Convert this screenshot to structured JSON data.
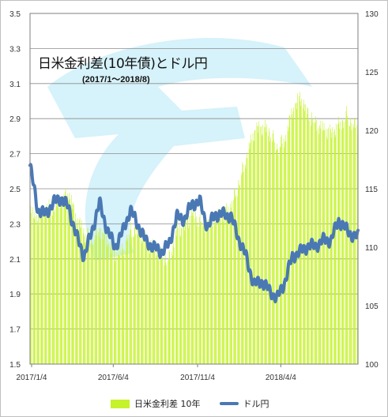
{
  "chart_data": {
    "type": "bar+line",
    "title": "日米金利差(10年債)とドル円",
    "subtitle": "(2017/1～2018/8)",
    "x_ticks": [
      "2017/1/4",
      "2017/6/4",
      "2017/11/4",
      "2018/4/4"
    ],
    "left_axis": {
      "ylim": [
        1.5,
        3.5
      ],
      "ticks": [
        "1.5",
        "1.7",
        "1.9",
        "2.1",
        "2.3",
        "2.5",
        "2.7",
        "2.9",
        "3.1",
        "3.3",
        "3.5"
      ]
    },
    "right_axis": {
      "ylim": [
        100,
        130
      ],
      "ticks": [
        "100",
        "105",
        "110",
        "115",
        "120",
        "125",
        "130"
      ]
    },
    "grid": true,
    "legend_position": "bottom",
    "series": [
      {
        "name": "日米金利差 10年",
        "type": "bar",
        "axis": "left",
        "color": "#c6f22c",
        "x": [
          "2017/1/4",
          "2017/1/18",
          "2017/2/1",
          "2017/2/15",
          "2017/3/1",
          "2017/3/15",
          "2017/3/29",
          "2017/4/12",
          "2017/4/26",
          "2017/5/10",
          "2017/5/24",
          "2017/6/7",
          "2017/6/21",
          "2017/7/5",
          "2017/7/19",
          "2017/8/2",
          "2017/8/16",
          "2017/8/30",
          "2017/9/13",
          "2017/9/27",
          "2017/10/11",
          "2017/10/25",
          "2017/11/8",
          "2017/11/22",
          "2017/12/6",
          "2017/12/20",
          "2018/1/3",
          "2018/1/17",
          "2018/1/31",
          "2018/2/14",
          "2018/2/28",
          "2018/3/14",
          "2018/3/28",
          "2018/4/11",
          "2018/4/25",
          "2018/5/9",
          "2018/5/23",
          "2018/6/6",
          "2018/6/20",
          "2018/7/4",
          "2018/7/18",
          "2018/8/1",
          "2018/8/15"
        ],
        "values": [
          2.36,
          2.33,
          2.38,
          2.4,
          2.44,
          2.47,
          2.32,
          2.25,
          2.22,
          2.27,
          2.2,
          2.12,
          2.15,
          2.27,
          2.26,
          2.2,
          2.16,
          2.12,
          2.1,
          2.26,
          2.28,
          2.36,
          2.32,
          2.29,
          2.33,
          2.35,
          2.4,
          2.53,
          2.68,
          2.82,
          2.85,
          2.83,
          2.74,
          2.78,
          2.94,
          3.02,
          2.93,
          2.88,
          2.84,
          2.81,
          2.86,
          2.92,
          2.86
        ]
      },
      {
        "name": "ドル円",
        "type": "line",
        "axis": "right",
        "color": "#4a78b4",
        "x": [
          "2017/1/4",
          "2017/1/18",
          "2017/2/1",
          "2017/2/15",
          "2017/3/1",
          "2017/3/15",
          "2017/3/29",
          "2017/4/12",
          "2017/4/26",
          "2017/5/10",
          "2017/5/24",
          "2017/6/7",
          "2017/6/21",
          "2017/7/5",
          "2017/7/19",
          "2017/8/2",
          "2017/8/16",
          "2017/8/30",
          "2017/9/13",
          "2017/9/27",
          "2017/10/11",
          "2017/10/25",
          "2017/11/8",
          "2017/11/22",
          "2017/12/6",
          "2017/12/20",
          "2018/1/3",
          "2018/1/17",
          "2018/1/31",
          "2018/2/14",
          "2018/2/28",
          "2018/3/14",
          "2018/3/28",
          "2018/4/11",
          "2018/4/25",
          "2018/5/9",
          "2018/5/23",
          "2018/6/6",
          "2018/6/20",
          "2018/7/4",
          "2018/7/18",
          "2018/8/1",
          "2018/8/15"
        ],
        "values": [
          117.0,
          113.2,
          112.8,
          113.8,
          114.2,
          113.4,
          111.0,
          109.2,
          111.3,
          113.8,
          111.5,
          110.0,
          111.3,
          113.2,
          111.9,
          110.5,
          110.0,
          109.6,
          110.2,
          112.6,
          112.4,
          113.7,
          113.9,
          111.7,
          112.8,
          112.8,
          112.7,
          110.8,
          109.2,
          106.8,
          107.1,
          106.3,
          105.6,
          107.0,
          109.2,
          109.6,
          110.1,
          110.1,
          110.6,
          110.6,
          112.3,
          111.5,
          110.9
        ]
      }
    ]
  }
}
